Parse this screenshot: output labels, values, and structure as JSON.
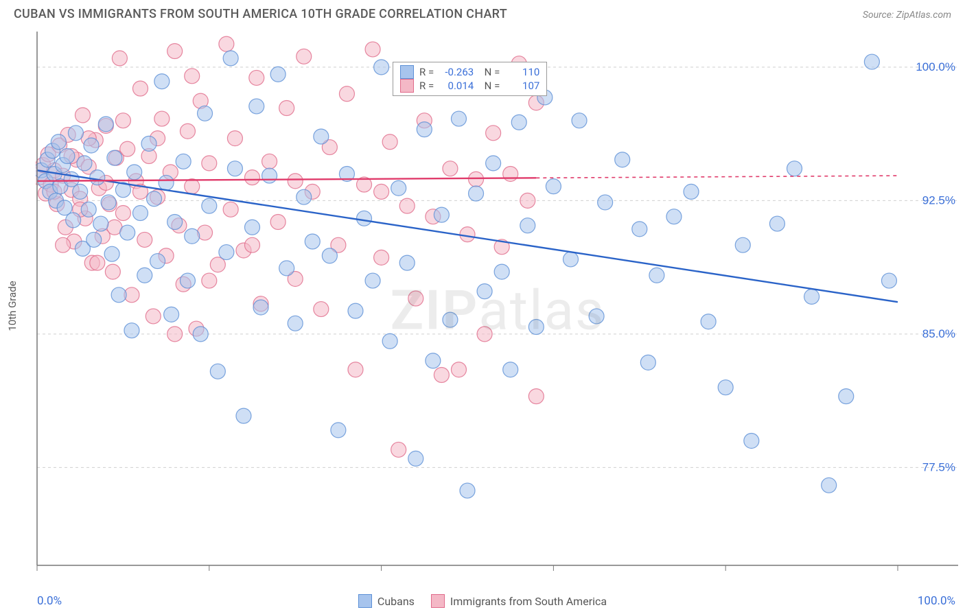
{
  "title": "CUBAN VS IMMIGRANTS FROM SOUTH AMERICA 10TH GRADE CORRELATION CHART",
  "source_prefix": "Source: ",
  "source_name": "ZipAtlas.com",
  "watermark_a": "ZIP",
  "watermark_b": "atlas",
  "ylabel": "10th Grade",
  "chart": {
    "type": "scatter",
    "xlim": [
      0,
      100
    ],
    "ylim": [
      72,
      102
    ],
    "x_ticks": [
      0,
      20,
      40,
      60,
      80,
      100
    ],
    "x_tick_labels_shown": [
      "0.0%",
      "100.0%"
    ],
    "y_ticks": [
      77.5,
      85.0,
      92.5,
      100.0
    ],
    "y_tick_labels": [
      "77.5%",
      "85.0%",
      "92.5%",
      "100.0%"
    ],
    "grid_color": "#cfcfcf",
    "axis_color": "#777777",
    "marker_radius": 11,
    "marker_opacity": 0.55,
    "plot_bg": "#ffffff",
    "tick_label_color": "#3a6fd8",
    "tick_label_fontsize": 17
  },
  "series": [
    {
      "key": "cubans",
      "label": "Cubans",
      "fill": "#a7c4ed",
      "stroke": "#5b8fd6",
      "line_color": "#2a63c8",
      "R": "-0.263",
      "N": "110",
      "trend": {
        "x1": 0,
        "y1": 94.2,
        "x2": 100,
        "y2": 86.8,
        "solid_until_x": 100
      },
      "points": [
        [
          0.5,
          94.2
        ],
        [
          1,
          93.6
        ],
        [
          1.2,
          94.8
        ],
        [
          1.5,
          93.0
        ],
        [
          1.8,
          95.3
        ],
        [
          2,
          94.0
        ],
        [
          2.2,
          92.5
        ],
        [
          2.5,
          95.8
        ],
        [
          2.7,
          93.3
        ],
        [
          3,
          94.5
        ],
        [
          3.2,
          92.1
        ],
        [
          3.5,
          95.0
        ],
        [
          4,
          93.7
        ],
        [
          4.2,
          91.4
        ],
        [
          4.5,
          96.3
        ],
        [
          5,
          93.0
        ],
        [
          5.3,
          89.8
        ],
        [
          5.5,
          94.6
        ],
        [
          6,
          92.0
        ],
        [
          6.3,
          95.6
        ],
        [
          6.6,
          90.3
        ],
        [
          7,
          93.8
        ],
        [
          7.4,
          91.2
        ],
        [
          8,
          96.8
        ],
        [
          8.3,
          92.4
        ],
        [
          8.7,
          89.5
        ],
        [
          9,
          94.9
        ],
        [
          9.5,
          87.2
        ],
        [
          10,
          93.1
        ],
        [
          10.5,
          90.7
        ],
        [
          11,
          85.2
        ],
        [
          11.3,
          94.1
        ],
        [
          12,
          91.8
        ],
        [
          12.5,
          88.3
        ],
        [
          13,
          95.7
        ],
        [
          13.6,
          92.6
        ],
        [
          14,
          89.1
        ],
        [
          14.5,
          99.2
        ],
        [
          15,
          93.5
        ],
        [
          15.6,
          86.1
        ],
        [
          16,
          91.3
        ],
        [
          17,
          94.7
        ],
        [
          17.5,
          88.0
        ],
        [
          18,
          90.5
        ],
        [
          19,
          85.0
        ],
        [
          19.5,
          97.4
        ],
        [
          20,
          92.2
        ],
        [
          21,
          82.9
        ],
        [
          22,
          89.6
        ],
        [
          22.5,
          100.5
        ],
        [
          23,
          94.3
        ],
        [
          24,
          80.4
        ],
        [
          25,
          91.0
        ],
        [
          25.5,
          97.8
        ],
        [
          26,
          86.5
        ],
        [
          27,
          93.9
        ],
        [
          28,
          99.6
        ],
        [
          29,
          88.7
        ],
        [
          30,
          85.6
        ],
        [
          31,
          92.7
        ],
        [
          32,
          90.2
        ],
        [
          33,
          96.1
        ],
        [
          34,
          89.4
        ],
        [
          35,
          79.6
        ],
        [
          36,
          94.0
        ],
        [
          37,
          86.3
        ],
        [
          38,
          91.5
        ],
        [
          39,
          88.0
        ],
        [
          40,
          100.0
        ],
        [
          41,
          84.6
        ],
        [
          42,
          93.2
        ],
        [
          43,
          89.0
        ],
        [
          44,
          78.0
        ],
        [
          45,
          96.5
        ],
        [
          46,
          83.5
        ],
        [
          47,
          91.7
        ],
        [
          48,
          85.8
        ],
        [
          49,
          97.1
        ],
        [
          50,
          76.2
        ],
        [
          51,
          92.9
        ],
        [
          52,
          87.4
        ],
        [
          53,
          94.6
        ],
        [
          54,
          88.5
        ],
        [
          55,
          83.0
        ],
        [
          56,
          96.9
        ],
        [
          57,
          91.1
        ],
        [
          58,
          85.4
        ],
        [
          59,
          98.3
        ],
        [
          60,
          93.3
        ],
        [
          62,
          89.2
        ],
        [
          63,
          97.0
        ],
        [
          65,
          86.0
        ],
        [
          66,
          92.4
        ],
        [
          68,
          94.8
        ],
        [
          70,
          90.9
        ],
        [
          71,
          83.4
        ],
        [
          72,
          88.3
        ],
        [
          74,
          91.6
        ],
        [
          76,
          93.0
        ],
        [
          78,
          85.7
        ],
        [
          80,
          82.0
        ],
        [
          82,
          90.0
        ],
        [
          83,
          79.0
        ],
        [
          86,
          91.2
        ],
        [
          88,
          94.3
        ],
        [
          90,
          87.1
        ],
        [
          92,
          76.5
        ],
        [
          94,
          81.5
        ],
        [
          97,
          100.3
        ],
        [
          99,
          88.0
        ]
      ]
    },
    {
      "key": "sa",
      "label": "Immigrants from South America",
      "fill": "#f4b8c6",
      "stroke": "#e06a8a",
      "line_color": "#e03a6a",
      "R": "0.014",
      "N": "107",
      "trend": {
        "x1": 0,
        "y1": 93.6,
        "x2": 100,
        "y2": 93.9,
        "solid_until_x": 58
      },
      "points": [
        [
          0.3,
          93.8
        ],
        [
          0.7,
          94.5
        ],
        [
          1,
          92.9
        ],
        [
          1.3,
          95.1
        ],
        [
          1.6,
          93.4
        ],
        [
          2,
          94.2
        ],
        [
          2.3,
          92.3
        ],
        [
          2.6,
          95.6
        ],
        [
          3,
          93.9
        ],
        [
          3.3,
          91.0
        ],
        [
          3.6,
          96.2
        ],
        [
          4,
          93.1
        ],
        [
          4.3,
          90.2
        ],
        [
          4.6,
          94.8
        ],
        [
          5,
          92.6
        ],
        [
          5.3,
          97.3
        ],
        [
          5.6,
          91.5
        ],
        [
          6,
          94.4
        ],
        [
          6.4,
          89.0
        ],
        [
          6.8,
          95.9
        ],
        [
          7.2,
          93.2
        ],
        [
          7.6,
          90.5
        ],
        [
          8,
          96.7
        ],
        [
          8.4,
          92.3
        ],
        [
          8.8,
          88.5
        ],
        [
          9.2,
          94.9
        ],
        [
          9.6,
          100.5
        ],
        [
          10,
          91.8
        ],
        [
          10.5,
          95.4
        ],
        [
          11,
          87.2
        ],
        [
          11.5,
          93.6
        ],
        [
          12,
          98.8
        ],
        [
          12.5,
          90.3
        ],
        [
          13,
          95.0
        ],
        [
          13.5,
          86.0
        ],
        [
          14,
          92.7
        ],
        [
          14.5,
          97.1
        ],
        [
          15,
          89.4
        ],
        [
          15.5,
          94.1
        ],
        [
          16,
          100.9
        ],
        [
          16.5,
          91.1
        ],
        [
          17,
          87.8
        ],
        [
          17.5,
          96.4
        ],
        [
          18,
          93.3
        ],
        [
          18.5,
          85.3
        ],
        [
          19,
          98.1
        ],
        [
          19.5,
          90.7
        ],
        [
          20,
          94.6
        ],
        [
          21,
          88.9
        ],
        [
          22,
          101.3
        ],
        [
          22.5,
          92.0
        ],
        [
          23,
          96.0
        ],
        [
          24,
          89.7
        ],
        [
          25,
          93.8
        ],
        [
          25.5,
          99.4
        ],
        [
          26,
          86.7
        ],
        [
          27,
          94.7
        ],
        [
          28,
          91.3
        ],
        [
          29,
          97.7
        ],
        [
          30,
          88.1
        ],
        [
          31,
          100.6
        ],
        [
          32,
          93.0
        ],
        [
          33,
          86.4
        ],
        [
          34,
          95.5
        ],
        [
          35,
          90.0
        ],
        [
          36,
          98.5
        ],
        [
          37,
          83.0
        ],
        [
          38,
          93.4
        ],
        [
          39,
          101.0
        ],
        [
          40,
          89.3
        ],
        [
          41,
          95.8
        ],
        [
          42,
          78.5
        ],
        [
          43,
          92.2
        ],
        [
          44,
          87.0
        ],
        [
          45,
          97.0
        ],
        [
          46,
          91.6
        ],
        [
          47,
          82.7
        ],
        [
          48,
          94.3
        ],
        [
          49,
          99.0
        ],
        [
          50,
          90.6
        ],
        [
          51,
          93.7
        ],
        [
          52,
          85.0
        ],
        [
          53,
          96.3
        ],
        [
          54,
          89.9
        ],
        [
          55,
          94.0
        ],
        [
          56,
          100.2
        ],
        [
          57,
          92.5
        ],
        [
          58,
          98.0
        ],
        [
          40,
          93.0
        ],
        [
          30,
          93.6
        ],
        [
          25,
          90.0
        ],
        [
          20,
          88.0
        ],
        [
          18,
          99.5
        ],
        [
          16,
          85.0
        ],
        [
          14,
          96.0
        ],
        [
          12,
          93.0
        ],
        [
          10,
          97.0
        ],
        [
          9,
          91.0
        ],
        [
          8,
          93.5
        ],
        [
          7,
          89.0
        ],
        [
          6,
          96.0
        ],
        [
          5,
          92.0
        ],
        [
          4,
          95.0
        ],
        [
          3,
          90.0
        ],
        [
          2,
          93.0
        ],
        [
          58,
          81.5
        ],
        [
          49,
          83.0
        ]
      ]
    }
  ],
  "inner_legend": {
    "r_label": "R =",
    "n_label": "N ="
  },
  "bottom_legend": {}
}
